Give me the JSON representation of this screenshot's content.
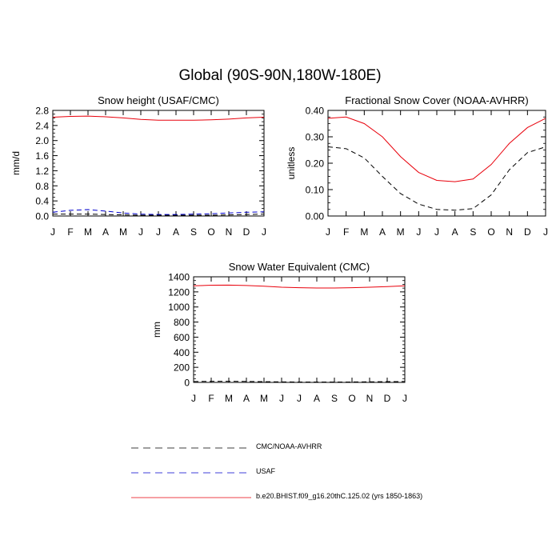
{
  "title": "Global (90S-90N,180W-180E)",
  "colors": {
    "model": "#e8000b",
    "cmc": "#000000",
    "usaf": "#0000cc"
  },
  "legend": [
    {
      "label": "CMC/NOAA-AVHRR",
      "color": "#000000",
      "dash": "dashed"
    },
    {
      "label": "USAF",
      "color": "#0000cc",
      "dash": "dashed"
    },
    {
      "label": "b.e20.BHIST.f09_g16.20thC.125.02 (yrs 1850-1863)",
      "color": "#e8000b",
      "dash": "solid"
    }
  ],
  "chart_data": [
    {
      "type": "line",
      "title": "Snow height (USAF/CMC)",
      "ylabel": "mm/d",
      "xlabel": "",
      "categories": [
        "J",
        "F",
        "M",
        "A",
        "M",
        "J",
        "J",
        "A",
        "S",
        "O",
        "N",
        "D",
        "J"
      ],
      "ylim": [
        0,
        2.8
      ],
      "yticks": [
        0.0,
        0.4,
        0.8,
        1.2,
        1.6,
        2.0,
        2.4,
        2.8
      ],
      "ytick_labels": [
        "0.0",
        "0.4",
        "0.8",
        "1.2",
        "1.6",
        "2.0",
        "2.4",
        "2.8"
      ],
      "series": [
        {
          "name": "b.e20.BHIST.f09_g16.20thC.125.02 (yrs 1850-1863)",
          "style": "solid",
          "color": "#e8000b",
          "values": [
            2.62,
            2.64,
            2.65,
            2.63,
            2.6,
            2.56,
            2.54,
            2.54,
            2.54,
            2.55,
            2.57,
            2.6,
            2.62
          ]
        },
        {
          "name": "USAF",
          "style": "dashed",
          "color": "#0000cc",
          "values": [
            0.1,
            0.15,
            0.17,
            0.13,
            0.08,
            0.05,
            0.04,
            0.04,
            0.05,
            0.06,
            0.08,
            0.1,
            0.11
          ]
        },
        {
          "name": "CMC/NOAA-AVHRR",
          "style": "dashed",
          "color": "#000000",
          "values": [
            0.05,
            0.05,
            0.05,
            0.04,
            0.03,
            0.02,
            0.02,
            0.02,
            0.02,
            0.02,
            0.03,
            0.04,
            0.05
          ]
        }
      ]
    },
    {
      "type": "line",
      "title": "Fractional Snow Cover (NOAA-AVHRR)",
      "ylabel": "unitless",
      "xlabel": "",
      "categories": [
        "J",
        "F",
        "M",
        "A",
        "M",
        "J",
        "J",
        "A",
        "S",
        "O",
        "N",
        "D",
        "J"
      ],
      "ylim": [
        0,
        0.4
      ],
      "yticks": [
        0.0,
        0.1,
        0.2,
        0.3,
        0.4
      ],
      "ytick_labels": [
        "0.00",
        "0.10",
        "0.20",
        "0.30",
        "0.40"
      ],
      "series": [
        {
          "name": "b.e20.BHIST.f09_g16.20thC.125.02 (yrs 1850-1863)",
          "style": "solid",
          "color": "#e8000b",
          "values": [
            0.37,
            0.375,
            0.35,
            0.3,
            0.225,
            0.165,
            0.135,
            0.13,
            0.14,
            0.195,
            0.275,
            0.335,
            0.37
          ]
        },
        {
          "name": "CMC/NOAA-AVHRR",
          "style": "dashed",
          "color": "#000000",
          "values": [
            0.262,
            0.255,
            0.22,
            0.15,
            0.085,
            0.045,
            0.025,
            0.022,
            0.028,
            0.08,
            0.175,
            0.24,
            0.262
          ]
        }
      ]
    },
    {
      "type": "line",
      "title": "Snow Water Equivalent (CMC)",
      "ylabel": "mm",
      "xlabel": "",
      "categories": [
        "J",
        "F",
        "M",
        "A",
        "M",
        "J",
        "J",
        "A",
        "S",
        "O",
        "N",
        "D",
        "J"
      ],
      "ylim": [
        0,
        1400
      ],
      "yticks": [
        0,
        200,
        400,
        600,
        800,
        1000,
        1200,
        1400
      ],
      "ytick_labels": [
        "0",
        "200",
        "400",
        "600",
        "800",
        "1000",
        "1200",
        "1400"
      ],
      "series": [
        {
          "name": "b.e20.BHIST.f09_g16.20thC.125.02 (yrs 1850-1863)",
          "style": "solid",
          "color": "#e8000b",
          "values": [
            1280,
            1288,
            1290,
            1285,
            1275,
            1262,
            1255,
            1252,
            1252,
            1256,
            1262,
            1270,
            1280
          ]
        },
        {
          "name": "CMC/NOAA-AVHRR",
          "style": "dashed",
          "color": "#000000",
          "values": [
            12,
            14,
            15,
            13,
            10,
            7,
            5,
            5,
            5,
            6,
            8,
            10,
            12
          ]
        }
      ]
    }
  ]
}
